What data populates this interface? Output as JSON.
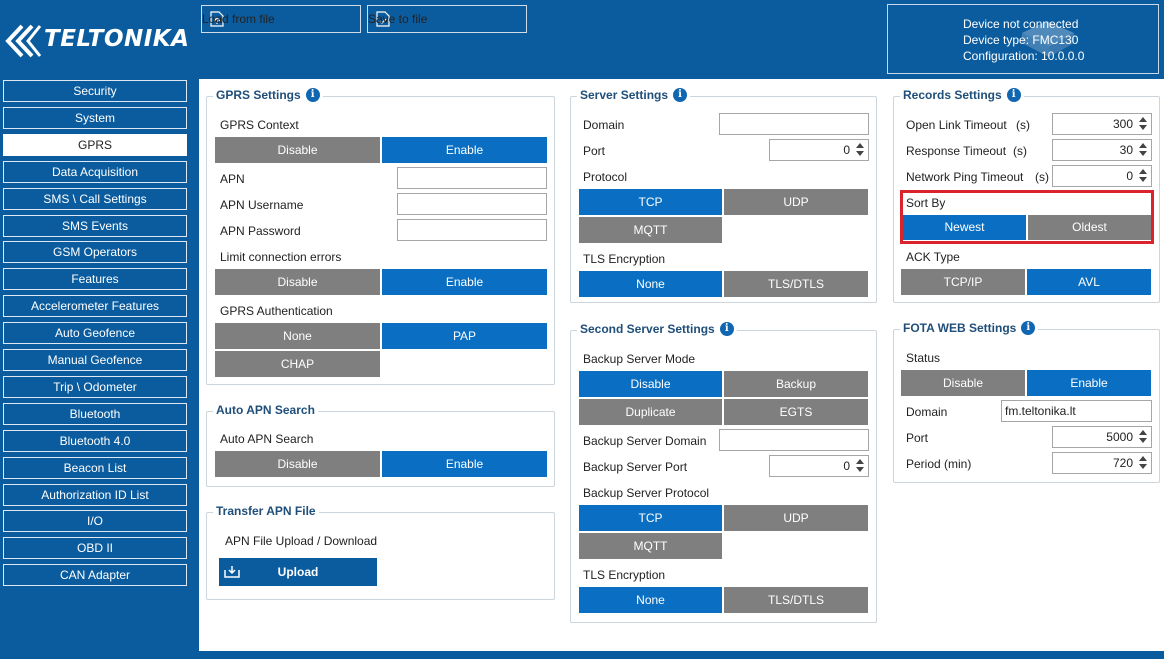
{
  "header": {
    "brand": "TELTONIKA",
    "load_label": "Load from file",
    "save_label": "Save to file",
    "device_status": "Device not connected",
    "device_type": "Device type: FMC130",
    "configuration": "Configuration: 10.0.0.0"
  },
  "sidebar": {
    "items": [
      {
        "label": "Security"
      },
      {
        "label": "System"
      },
      {
        "label": "GPRS",
        "active": true
      },
      {
        "label": "Data Acquisition"
      },
      {
        "label": "SMS \\ Call Settings"
      },
      {
        "label": "SMS Events"
      },
      {
        "label": "GSM Operators"
      },
      {
        "label": "Features"
      },
      {
        "label": "Accelerometer Features"
      },
      {
        "label": "Auto Geofence"
      },
      {
        "label": "Manual Geofence"
      },
      {
        "label": "Trip \\ Odometer"
      },
      {
        "label": "Bluetooth"
      },
      {
        "label": "Bluetooth 4.0"
      },
      {
        "label": "Beacon List"
      },
      {
        "label": "Authorization ID List"
      },
      {
        "label": "I/O"
      },
      {
        "label": "OBD II"
      },
      {
        "label": "CAN Adapter"
      }
    ]
  },
  "gprs": {
    "title": "GPRS Settings",
    "context_label": "GPRS Context",
    "context_disable": "Disable",
    "context_enable": "Enable",
    "apn_label": "APN",
    "apn_value": "",
    "apn_user_label": "APN Username",
    "apn_user_value": "",
    "apn_pass_label": "APN Password",
    "apn_pass_value": "",
    "limit_label": "Limit connection errors",
    "limit_disable": "Disable",
    "limit_enable": "Enable",
    "auth_label": "GPRS Authentication",
    "auth_none": "None",
    "auth_pap": "PAP",
    "auth_chap": "CHAP"
  },
  "auto_apn": {
    "title": "Auto APN Search",
    "label": "Auto APN Search",
    "disable": "Disable",
    "enable": "Enable"
  },
  "transfer_apn": {
    "title": "Transfer APN File",
    "label": "APN File Upload / Download",
    "upload": "Upload"
  },
  "server": {
    "title": "Server Settings",
    "domain_label": "Domain",
    "domain_value": "",
    "port_label": "Port",
    "port_value": "0",
    "protocol_label": "Protocol",
    "tcp": "TCP",
    "udp": "UDP",
    "mqtt": "MQTT",
    "tls_label": "TLS Encryption",
    "tls_none": "None",
    "tls_dtls": "TLS/DTLS"
  },
  "second_server": {
    "title": "Second Server Settings",
    "mode_label": "Backup Server Mode",
    "mode_disable": "Disable",
    "mode_backup": "Backup",
    "mode_duplicate": "Duplicate",
    "mode_egts": "EGTS",
    "domain_label": "Backup Server Domain",
    "domain_value": "",
    "port_label": "Backup Server Port",
    "port_value": "0",
    "protocol_label": "Backup Server Protocol",
    "tcp": "TCP",
    "udp": "UDP",
    "mqtt": "MQTT",
    "tls_label": "TLS Encryption",
    "tls_none": "None",
    "tls_dtls": "TLS/DTLS"
  },
  "records": {
    "title": "Records Settings",
    "open_link_label": "Open Link Timeout",
    "open_link_unit": "(s)",
    "open_link_value": "300",
    "response_label": "Response Timeout",
    "response_unit": "(s)",
    "response_value": "30",
    "ping_label": "Network Ping Timeout",
    "ping_unit": "(s)",
    "ping_value": "0",
    "sort_label": "Sort By",
    "sort_newest": "Newest",
    "sort_oldest": "Oldest",
    "ack_label": "ACK Type",
    "ack_tcpip": "TCP/IP",
    "ack_avl": "AVL"
  },
  "fota": {
    "title": "FOTA WEB Settings",
    "status_label": "Status",
    "status_disable": "Disable",
    "status_enable": "Enable",
    "domain_label": "Domain",
    "domain_value": "fm.teltonika.lt",
    "port_label": "Port",
    "port_value": "5000",
    "period_label": "Period (min)",
    "period_value": "720"
  },
  "colors": {
    "brand_blue": "#0b5c9e",
    "selected_blue": "#0a6fc2",
    "unselected_gray": "#7f7f7f",
    "highlight_red": "#d9232d"
  }
}
